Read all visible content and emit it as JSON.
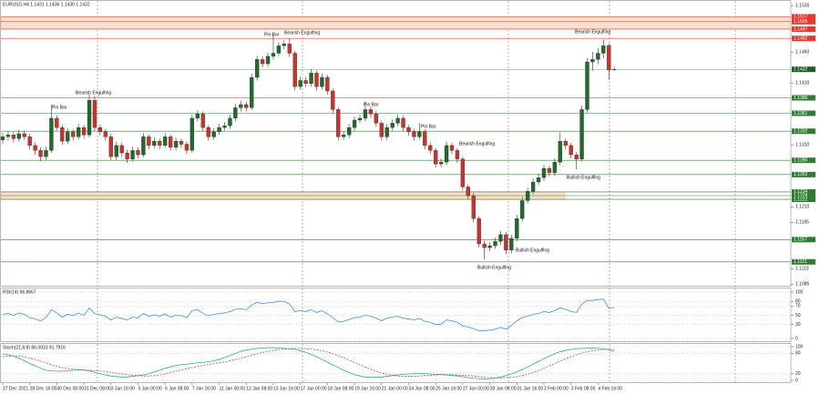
{
  "chart_data": [
    {
      "type": "candlestick",
      "title": "EURUSD,H4  1.1431 1.1436 1.1430 1.1432",
      "categories": [
        "27 Dec 2021",
        null,
        null,
        null,
        null,
        "28 Dec 16:00",
        null,
        null,
        null,
        null,
        "30 Dec 00:00",
        null,
        null,
        null,
        null,
        "31 Dec 08:00",
        null,
        null,
        null,
        null,
        "3 Jan 16:00",
        null,
        null,
        null,
        null,
        "5 Jan 00:00",
        null,
        null,
        null,
        null,
        "6 Jan 08:00",
        null,
        null,
        null,
        null,
        "7 Jan 16:00",
        null,
        null,
        null,
        null,
        "11 Jan 00:00",
        null,
        null,
        null,
        null,
        "12 Jan 08:00",
        null,
        null,
        null,
        null,
        "13 Jan 16:00",
        null,
        null,
        null,
        null,
        "17 Jan 00:00",
        null,
        null,
        null,
        null,
        "18 Jan 08:00",
        null,
        null,
        null,
        null,
        "19 Jan 16:00",
        null,
        null,
        null,
        null,
        "21 Jan 00:00",
        null,
        null,
        null,
        null,
        "24 Jan 08:00",
        null,
        null,
        null,
        null,
        "25 Jan 16:00",
        null,
        null,
        null,
        null,
        "27 Jan 00:00",
        null,
        null,
        null,
        null,
        "28 Jan 08:00",
        null,
        null,
        null,
        null,
        "31 Jan 16:00",
        null,
        null,
        null,
        null,
        "2 Feb 00:00",
        null,
        null,
        null,
        null,
        "3 Feb 08:00",
        null,
        null,
        null,
        null,
        "4 Feb 16:00",
        null,
        null,
        null
      ],
      "open": [
        1.1318,
        1.1323,
        1.1326,
        1.132,
        1.1328,
        1.1323,
        1.1309,
        1.1301,
        1.1291,
        1.1301,
        1.1353,
        1.1338,
        1.1316,
        1.1331,
        1.1323,
        1.1338,
        1.1326,
        1.1382,
        1.1338,
        1.1331,
        1.1323,
        1.1291,
        1.1309,
        1.1297,
        1.1287,
        1.1301,
        1.1294,
        1.1323,
        1.1309,
        1.1316,
        1.1309,
        1.1323,
        1.1306,
        1.1316,
        1.1311,
        1.1301,
        1.1353,
        1.136,
        1.1338,
        1.1323,
        1.1331,
        1.1338,
        1.1341,
        1.1353,
        1.137,
        1.1375,
        1.137,
        1.1419,
        1.1448,
        1.1441,
        1.1453,
        1.1458,
        1.147,
        1.1473,
        1.1458,
        1.1404,
        1.1414,
        1.1409,
        1.1426,
        1.1404,
        1.1419,
        1.1397,
        1.1367,
        1.1323,
        1.1326,
        1.1338,
        1.135,
        1.1353,
        1.1367,
        1.136,
        1.1345,
        1.1323,
        1.1338,
        1.1345,
        1.1353,
        1.1338,
        1.1331,
        1.1323,
        1.1331,
        1.1309,
        1.1301,
        1.1279,
        1.1282,
        1.1309,
        1.1301,
        1.1287,
        1.1242,
        1.1228,
        1.1191,
        1.115,
        1.1144,
        1.1147,
        1.1154,
        1.1165,
        1.114,
        1.1159,
        1.1191,
        1.122,
        1.1235,
        1.125,
        1.1257,
        1.1272,
        1.1265,
        1.1282,
        1.1316,
        1.1309,
        1.1294,
        1.1287,
        1.1367,
        1.1444,
        1.1448,
        1.1458,
        1.147,
        1.1431
      ],
      "high": [
        1.1329,
        1.1332,
        1.1331,
        1.1334,
        1.1333,
        1.1328,
        1.1314,
        1.1306,
        1.1307,
        1.1375,
        1.1358,
        1.1342,
        1.1337,
        1.1336,
        1.1344,
        1.1342,
        1.1392,
        1.1389,
        1.1343,
        1.1336,
        1.1328,
        1.1315,
        1.1313,
        1.1302,
        1.1307,
        1.1306,
        1.1329,
        1.1327,
        1.1322,
        1.132,
        1.1329,
        1.1327,
        1.1322,
        1.132,
        1.1315,
        1.1359,
        1.1366,
        1.1364,
        1.1342,
        1.1337,
        1.1344,
        1.1347,
        1.1359,
        1.1376,
        1.1381,
        1.138,
        1.1425,
        1.1454,
        1.1453,
        1.1459,
        1.1488,
        1.1476,
        1.1479,
        1.1482,
        1.1462,
        1.142,
        1.1419,
        1.1432,
        1.143,
        1.1425,
        1.1423,
        1.1401,
        1.1371,
        1.1332,
        1.1344,
        1.1356,
        1.1359,
        1.138,
        1.1372,
        1.1365,
        1.1349,
        1.1344,
        1.1351,
        1.1359,
        1.1357,
        1.1342,
        1.1336,
        1.1345,
        1.1335,
        1.1314,
        1.1305,
        1.1288,
        1.1315,
        1.1313,
        1.1305,
        1.1291,
        1.1246,
        1.1232,
        1.1195,
        1.1155,
        1.1153,
        1.116,
        1.1171,
        1.1169,
        1.1165,
        1.1197,
        1.1226,
        1.1241,
        1.1256,
        1.1263,
        1.1278,
        1.1276,
        1.1288,
        1.133,
        1.132,
        1.1313,
        1.1298,
        1.1373,
        1.145,
        1.146,
        1.1466,
        1.148,
        1.1474,
        1.1436
      ],
      "low": [
        1.1312,
        1.1317,
        1.1314,
        1.1315,
        1.1318,
        1.1303,
        1.1294,
        1.1284,
        1.1286,
        1.1297,
        1.1333,
        1.131,
        1.1311,
        1.1317,
        1.1319,
        1.132,
        1.1322,
        1.1332,
        1.1325,
        1.1317,
        1.1285,
        1.1286,
        1.1291,
        1.1281,
        1.1283,
        1.1288,
        1.129,
        1.1303,
        1.1304,
        1.1303,
        1.1305,
        1.13,
        1.1301,
        1.1305,
        1.1295,
        1.1297,
        1.1348,
        1.1332,
        1.1317,
        1.1318,
        1.1326,
        1.1333,
        1.1336,
        1.1348,
        1.1364,
        1.1364,
        1.1366,
        1.1414,
        1.1435,
        1.1436,
        1.1448,
        1.1453,
        1.1465,
        1.1452,
        1.1398,
        1.1399,
        1.1403,
        1.1404,
        1.1398,
        1.1399,
        1.1391,
        1.1361,
        1.1317,
        1.1318,
        1.1321,
        1.1333,
        1.1345,
        1.1348,
        1.1354,
        1.1339,
        1.1317,
        1.1318,
        1.1333,
        1.134,
        1.1332,
        1.1325,
        1.1317,
        1.1318,
        1.1303,
        1.1295,
        1.1273,
        1.1274,
        1.1277,
        1.1295,
        1.1281,
        1.1236,
        1.1222,
        1.1185,
        1.1144,
        1.1125,
        1.1138,
        1.1142,
        1.1149,
        1.1134,
        1.1135,
        1.1154,
        1.1186,
        1.1215,
        1.123,
        1.1245,
        1.1252,
        1.1259,
        1.126,
        1.1277,
        1.1303,
        1.1288,
        1.127,
        1.1283,
        1.1362,
        1.143,
        1.144,
        1.145,
        1.1415,
        1.143
      ],
      "close": [
        1.1323,
        1.1326,
        1.132,
        1.1328,
        1.1323,
        1.1309,
        1.1301,
        1.1291,
        1.1301,
        1.1353,
        1.1338,
        1.1316,
        1.1331,
        1.1323,
        1.1338,
        1.1326,
        1.1382,
        1.1338,
        1.1331,
        1.1323,
        1.1291,
        1.1309,
        1.1297,
        1.1287,
        1.1301,
        1.1294,
        1.1323,
        1.1309,
        1.1316,
        1.1309,
        1.1323,
        1.1306,
        1.1316,
        1.1311,
        1.1301,
        1.1353,
        1.136,
        1.1338,
        1.1323,
        1.1331,
        1.1338,
        1.1341,
        1.1353,
        1.137,
        1.1375,
        1.137,
        1.1419,
        1.1448,
        1.1441,
        1.1453,
        1.1458,
        1.147,
        1.1473,
        1.1458,
        1.1404,
        1.1414,
        1.1409,
        1.1426,
        1.1404,
        1.1419,
        1.1397,
        1.1367,
        1.1323,
        1.1326,
        1.1338,
        1.135,
        1.1353,
        1.1367,
        1.136,
        1.1345,
        1.1323,
        1.1338,
        1.1345,
        1.1353,
        1.1338,
        1.1331,
        1.1323,
        1.1331,
        1.1309,
        1.1301,
        1.1279,
        1.1282,
        1.1309,
        1.1301,
        1.1287,
        1.1242,
        1.1228,
        1.1191,
        1.115,
        1.1144,
        1.1147,
        1.1154,
        1.1165,
        1.114,
        1.1159,
        1.1191,
        1.122,
        1.1235,
        1.125,
        1.1257,
        1.1272,
        1.1265,
        1.1282,
        1.1316,
        1.1309,
        1.1294,
        1.1287,
        1.1367,
        1.1444,
        1.1448,
        1.1458,
        1.147,
        1.1431,
        1.1432
      ],
      "up_color": "#1f6b2a",
      "down_color": "#d0302a",
      "ylim": [
        1.1081,
        1.1544
      ],
      "yticks": [
        1.1535,
        {
          "value": 1.146,
          "label": "1.1460"
        },
        {
          "value": 1.141,
          "label": "1.1410"
        },
        {
          "value": 1.131,
          "label": "1.1310"
        },
        {
          "value": 1.121,
          "label": "1.1210"
        },
        1.1185,
        {
          "value": 1.111,
          "label": "1.1110"
        },
        1.1085
      ],
      "levels": [
        {
          "value": 1.1517,
          "color": "#e5392f"
        },
        {
          "value": 1.1509,
          "color": "#e5392f"
        },
        {
          "value": 1.1497,
          "color": "#e5392f"
        },
        {
          "value": 1.1482,
          "color": "#e5392f"
        },
        {
          "value": 1.1386,
          "color": "#2e7d32"
        },
        {
          "value": 1.1361,
          "color": "#2e7d32"
        },
        {
          "value": 1.1332,
          "color": "#2e7d32"
        },
        {
          "value": 1.1285,
          "color": "#2e7d32"
        },
        {
          "value": 1.1262,
          "color": "#2e7d32"
        },
        {
          "value": 1.1234,
          "color": "#2e7d32"
        },
        {
          "value": 1.1228,
          "color": "#2e7d32"
        },
        {
          "value": 1.1222,
          "color": "#2e7d32"
        },
        {
          "value": 1.1157,
          "color": "#2e7d32"
        },
        {
          "value": 1.1121,
          "color": "#2e7d32"
        }
      ],
      "zones": [
        {
          "from": 1.1497,
          "to": 1.1517
        },
        {
          "from": 1.1222,
          "to": 1.1234
        }
      ],
      "zone_color": "#fbe0cc",
      "annotations": [
        "Pin Bar",
        "Bearish Engulfing",
        "Bearish Engulfing",
        "Bearish Engulfing",
        "Pin Bar",
        "Pin Bar",
        "Pin Bar",
        "Bearish Engulfing",
        "Bullish Engulfing",
        "Bullish Engulfing",
        "Bullish Engulfing"
      ]
    },
    {
      "type": "line",
      "title": "RSI(14) 66.8667",
      "ylim": [
        0,
        100
      ],
      "yticks": [
        100,
        80,
        70,
        50,
        30,
        0
      ],
      "grid": true,
      "series": [
        {
          "color": "#3d8fe0",
          "values": [
            52,
            54,
            50,
            55,
            52,
            45,
            42,
            38,
            45,
            62,
            55,
            46,
            52,
            49,
            55,
            50,
            66,
            54,
            51,
            48,
            40,
            46,
            43,
            40,
            46,
            44,
            54,
            48,
            51,
            48,
            53,
            46,
            50,
            49,
            45,
            60,
            62,
            54,
            49,
            52,
            54,
            55,
            58,
            63,
            64,
            62,
            72,
            78,
            75,
            77,
            78,
            80,
            80,
            74,
            58,
            60,
            58,
            62,
            56,
            60,
            53,
            45,
            36,
            37,
            41,
            45,
            46,
            50,
            48,
            44,
            38,
            44,
            46,
            48,
            44,
            42,
            40,
            43,
            37,
            35,
            30,
            31,
            40,
            38,
            35,
            27,
            25,
            21,
            17,
            17,
            18,
            20,
            24,
            20,
            28,
            38,
            45,
            48,
            52,
            54,
            58,
            56,
            60,
            66,
            63,
            58,
            56,
            74,
            82,
            82,
            84,
            85,
            65,
            66.8667
          ]
        }
      ]
    },
    {
      "type": "line",
      "title": "Stoch(21,8,8) 86.0031 91.7916",
      "ylim": [
        0,
        100
      ],
      "yticks": [
        100,
        80,
        20,
        0
      ],
      "grid": true,
      "series": [
        {
          "color": "#2aa9a0",
          "values": [
            78,
            76,
            72,
            66,
            58,
            50,
            43,
            36,
            30,
            28,
            27,
            27,
            28,
            30,
            31,
            30,
            28,
            24,
            20,
            16,
            13,
            11,
            10,
            10,
            12,
            14,
            16,
            20,
            25,
            30,
            36,
            40,
            44,
            47,
            48,
            50,
            52,
            53,
            55,
            58,
            62,
            68,
            74,
            80,
            86,
            90,
            93,
            95,
            96,
            97,
            97,
            96,
            95,
            94,
            92,
            88,
            83,
            77,
            70,
            62,
            54,
            46,
            38,
            30,
            23,
            17,
            13,
            10,
            9,
            9,
            10,
            12,
            14,
            16,
            18,
            19,
            20,
            20,
            20,
            19,
            18,
            17,
            16,
            15,
            13,
            11,
            8,
            6,
            5,
            4,
            5,
            7,
            10,
            14,
            19,
            25,
            32,
            40,
            48,
            56,
            64,
            72,
            79,
            85,
            89,
            92,
            94,
            95,
            96,
            96,
            95,
            94,
            91,
            86.0031
          ]
        },
        {
          "color": "#d04a3a",
          "dashed": true,
          "values": [
            70,
            72,
            73,
            72,
            70,
            66,
            62,
            57,
            52,
            47,
            42,
            38,
            35,
            33,
            32,
            31,
            30,
            29,
            28,
            26,
            24,
            21,
            19,
            17,
            15,
            14,
            13,
            13,
            14,
            16,
            19,
            23,
            27,
            31,
            35,
            38,
            41,
            44,
            47,
            50,
            52,
            55,
            58,
            62,
            66,
            70,
            75,
            79,
            83,
            86,
            89,
            91,
            93,
            94,
            95,
            95,
            94,
            93,
            91,
            88,
            84,
            79,
            73,
            67,
            60,
            53,
            46,
            39,
            33,
            27,
            22,
            18,
            15,
            13,
            12,
            12,
            12,
            13,
            14,
            15,
            16,
            17,
            17,
            17,
            16,
            15,
            14,
            13,
            11,
            9,
            8,
            7,
            7,
            8,
            9,
            11,
            14,
            18,
            23,
            29,
            36,
            43,
            50,
            57,
            64,
            70,
            76,
            81,
            85,
            88,
            90,
            92,
            92,
            91.7916
          ]
        }
      ]
    }
  ]
}
